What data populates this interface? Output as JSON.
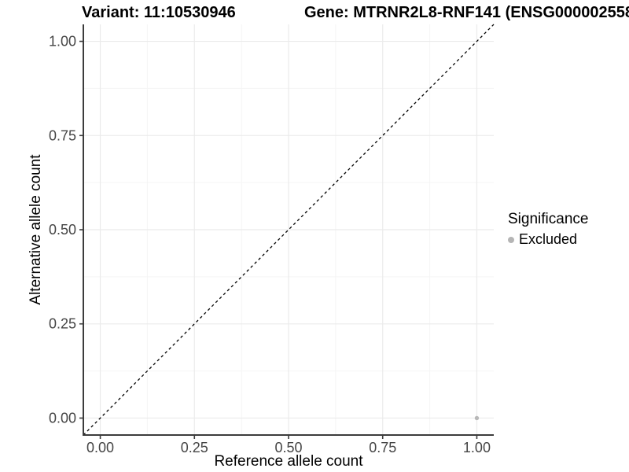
{
  "header": {
    "variant_title": "Variant: 11:10530946",
    "gene_title": "Gene: MTRNR2L8-RNF141 (ENSG000002558"
  },
  "chart_data": {
    "type": "scatter",
    "xlabel": "Reference allele count",
    "ylabel": "Alternative allele count",
    "xlim": [
      -0.045,
      1.045
    ],
    "ylim": [
      -0.045,
      1.045
    ],
    "xticks": [
      0,
      0.25,
      0.5,
      0.75,
      1
    ],
    "yticks": [
      0,
      0.25,
      0.5,
      0.75,
      1
    ],
    "xtick_labels": [
      "0.00",
      "0.25",
      "0.50",
      "0.75",
      "1.00"
    ],
    "ytick_labels": [
      "0.00",
      "0.25",
      "0.50",
      "0.75",
      "1.00"
    ],
    "grid": "major+minor",
    "legend_position": "right",
    "reference_line": {
      "type": "identity",
      "slope": 1,
      "intercept": 0,
      "style": "dashed",
      "color": "#000000"
    },
    "series": [
      {
        "name": "Excluded",
        "color": "#b5b5b5",
        "points": [
          [
            1.0,
            0.0
          ]
        ]
      }
    ],
    "legend": {
      "title": "Significance",
      "entries": [
        {
          "label": "Excluded",
          "color": "#b5b5b5"
        }
      ]
    },
    "colors": {
      "background": "#ffffff",
      "grid_major": "#ebebeb",
      "grid_minor": "#f5f5f5",
      "axis_line": "#3c3c3c",
      "tick_label": "#454545",
      "point": "#b5b5b5"
    }
  }
}
